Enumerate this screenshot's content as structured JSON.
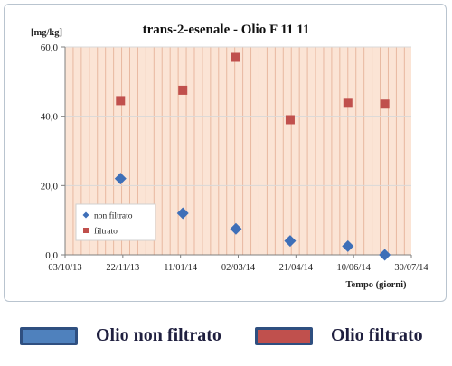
{
  "chart_data": {
    "type": "scatter",
    "title": "trans-2-esenale  - Olio F 11 11",
    "ylabel": "[mg/kg]",
    "xlabel": "Tempo (giorni)",
    "ylim": [
      0,
      60
    ],
    "yticks": [
      0,
      20,
      40,
      60
    ],
    "ytick_labels": [
      "0,0",
      "20,0",
      "40,0",
      "60,0"
    ],
    "xlim": [
      "2013-10-03",
      "2014-07-30"
    ],
    "xticks": [
      "2013-10-03",
      "2013-11-22",
      "2014-01-11",
      "2014-03-02",
      "2014-04-21",
      "2014-06-10",
      "2014-07-30"
    ],
    "xtick_labels": [
      "03/10/13",
      "22/11/13",
      "11/01/14",
      "02/03/14",
      "21/04/14",
      "10/06/14",
      "30/07/14"
    ],
    "grid": "vertical",
    "legend_position": "lower-left",
    "series": [
      {
        "name": "non filtrato",
        "color": "#3e6fb8",
        "marker": "diamond",
        "points": [
          {
            "x": "2013-11-20",
            "y": 22.0
          },
          {
            "x": "2014-01-13",
            "y": 12.0
          },
          {
            "x": "2014-02-28",
            "y": 7.5
          },
          {
            "x": "2014-04-16",
            "y": 4.0
          },
          {
            "x": "2014-06-05",
            "y": 2.5
          },
          {
            "x": "2014-07-07",
            "y": 0.0
          }
        ]
      },
      {
        "name": "filtrato",
        "color": "#c0504d",
        "marker": "square",
        "points": [
          {
            "x": "2013-11-20",
            "y": 44.5
          },
          {
            "x": "2014-01-13",
            "y": 47.5
          },
          {
            "x": "2014-02-28",
            "y": 57.0
          },
          {
            "x": "2014-04-16",
            "y": 39.0
          },
          {
            "x": "2014-06-05",
            "y": 44.0
          },
          {
            "x": "2014-07-07",
            "y": 43.5
          }
        ]
      }
    ],
    "plot_bg_color": "#fbe4d5",
    "grid_color": "#e8b8a0"
  },
  "bottom_legend": {
    "items": [
      {
        "label": "Olio non filtrato",
        "color": "#4f81bd"
      },
      {
        "label": "Olio filtrato",
        "color": "#c0504d"
      }
    ]
  }
}
